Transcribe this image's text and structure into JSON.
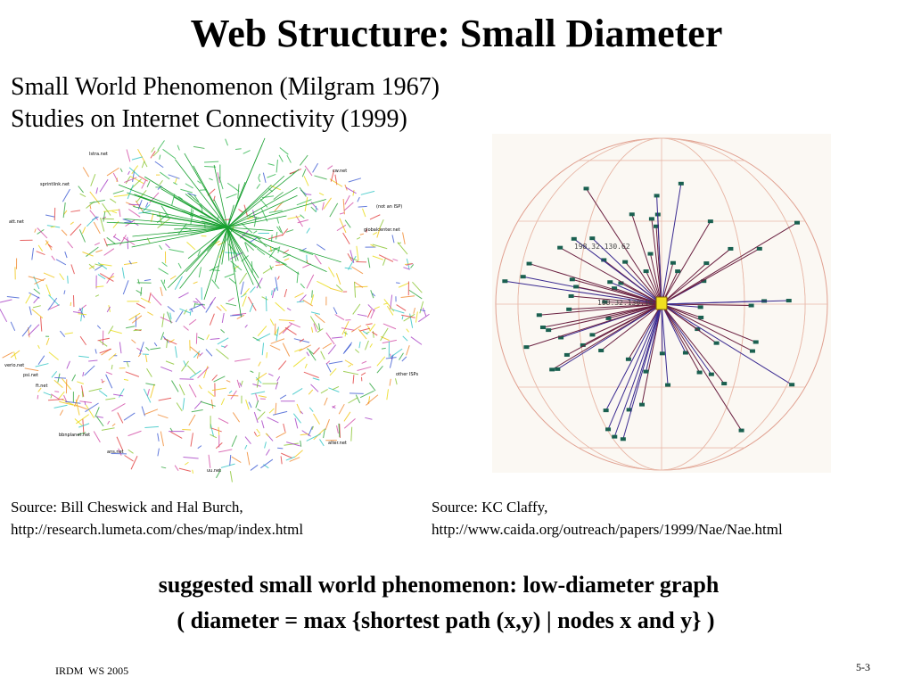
{
  "title": "Web Structure: Small Diameter",
  "subtitle": [
    "Small World Phenomenon (Milgram 1967)",
    "Studies on Internet Connectivity (1999)"
  ],
  "figures": [
    {
      "labels": [
        "lstra.net",
        "cw.net",
        "sprintlink.net",
        "(not an ISP)",
        "att.net",
        "globalcenter.net",
        "verio.net",
        "psi.net",
        "ft.net",
        "other ISPs",
        "bbnplanet.net",
        "ans.net",
        "alter.net",
        "uu.net"
      ],
      "source": [
        "Source: Bill Cheswick and Hal Burch,",
        "http://research.lumeta.com/ches/map/index.html"
      ]
    },
    {
      "labels": [
        "198.32.130.62",
        "198.32.130.18"
      ],
      "source": [
        "Source: KC Claffy,",
        "http://www.caida.org/outreach/papers/1999/Nae/Nae.html"
      ]
    }
  ],
  "statement": [
    "suggested small world phenomenon: low-diameter graph",
    "( diameter = max {shortest path (x,y) | nodes x and y} )"
  ],
  "footer": {
    "course": "IRDM  WS 2005",
    "page": "5-3"
  }
}
